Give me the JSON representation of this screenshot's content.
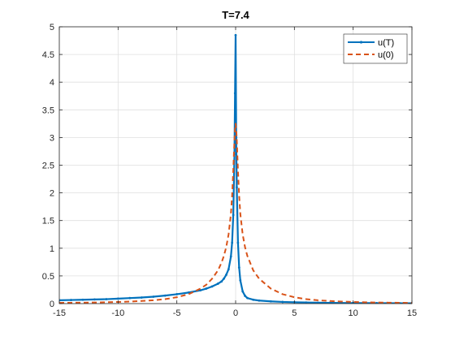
{
  "chart_data": {
    "type": "line",
    "title": "T=7.4",
    "xlabel": "",
    "ylabel": "",
    "xlim": [
      -15,
      15
    ],
    "ylim": [
      0,
      5
    ],
    "xticks": [
      -15,
      -10,
      -5,
      0,
      5,
      10,
      15
    ],
    "xtick_labels": [
      "-15",
      "-10",
      "-5",
      "0",
      "5",
      "10",
      "15"
    ],
    "yticks": [
      0,
      0.5,
      1,
      1.5,
      2,
      2.5,
      3,
      3.5,
      4,
      4.5,
      5
    ],
    "ytick_labels": [
      "0",
      "0.5",
      "1",
      "1.5",
      "2",
      "2.5",
      "3",
      "3.5",
      "4",
      "4.5",
      "5"
    ],
    "grid": true,
    "legend_position": "top-right",
    "series": [
      {
        "name": "u(T)",
        "color": "#0072BD",
        "style": "solid-with-point-markers",
        "x": [
          -15,
          -14,
          -13,
          -12,
          -11,
          -10,
          -9,
          -8,
          -7,
          -6,
          -5,
          -4,
          -3,
          -2.5,
          -2,
          -1.5,
          -1.2,
          -1,
          -0.8,
          -0.6,
          -0.4,
          -0.3,
          -0.2,
          -0.1,
          -0.05,
          0,
          0.05,
          0.1,
          0.2,
          0.3,
          0.4,
          0.6,
          0.8,
          1,
          1.5,
          2,
          3,
          4,
          5,
          6,
          7,
          8,
          9,
          10,
          11,
          12,
          13,
          14,
          15
        ],
        "y": [
          0.06,
          0.065,
          0.07,
          0.075,
          0.08,
          0.09,
          0.1,
          0.11,
          0.125,
          0.145,
          0.17,
          0.2,
          0.24,
          0.27,
          0.31,
          0.36,
          0.4,
          0.45,
          0.52,
          0.62,
          0.85,
          1.1,
          1.6,
          2.7,
          3.8,
          4.85,
          3.0,
          2.1,
          1.1,
          0.65,
          0.42,
          0.22,
          0.14,
          0.1,
          0.07,
          0.055,
          0.04,
          0.03,
          0.025,
          0.02,
          0.017,
          0.014,
          0.012,
          0.01,
          0.009,
          0.008,
          0.007,
          0.006,
          0.005
        ]
      },
      {
        "name": "u(0)",
        "color": "#D95319",
        "style": "dashed",
        "x": [
          -15,
          -14,
          -13,
          -12,
          -11,
          -10,
          -9,
          -8,
          -7,
          -6,
          -5,
          -4,
          -3,
          -2.5,
          -2,
          -1.5,
          -1.2,
          -1,
          -0.8,
          -0.6,
          -0.4,
          -0.3,
          -0.2,
          -0.1,
          -0.05,
          0,
          0.05,
          0.1,
          0.2,
          0.3,
          0.4,
          0.6,
          0.8,
          1,
          1.5,
          2,
          3,
          4,
          5,
          6,
          7,
          8,
          9,
          10,
          11,
          12,
          13,
          14,
          15
        ],
        "y": [
          0.013,
          0.015,
          0.017,
          0.02,
          0.024,
          0.03,
          0.037,
          0.047,
          0.06,
          0.081,
          0.115,
          0.17,
          0.27,
          0.34,
          0.45,
          0.6,
          0.74,
          0.86,
          1.02,
          1.25,
          1.62,
          1.95,
          2.4,
          2.95,
          3.15,
          3.25,
          3.15,
          2.95,
          2.4,
          1.95,
          1.62,
          1.25,
          1.02,
          0.86,
          0.6,
          0.45,
          0.27,
          0.17,
          0.115,
          0.081,
          0.06,
          0.047,
          0.037,
          0.03,
          0.024,
          0.02,
          0.017,
          0.015,
          0.013
        ]
      }
    ]
  }
}
